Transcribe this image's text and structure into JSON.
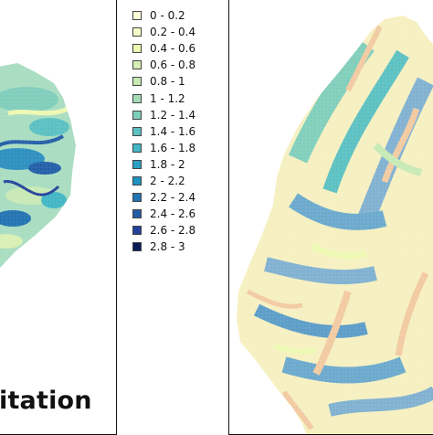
{
  "left_panel": {
    "title": "itation",
    "map_name": "left-map"
  },
  "right_panel": {
    "map_name": "right-map"
  },
  "legend": {
    "items": [
      {
        "label": "0 - 0.2",
        "color": "#ffffd9"
      },
      {
        "label": "0.2 - 0.4",
        "color": "#f6fbc5"
      },
      {
        "label": "0.4 - 0.6",
        "color": "#edf8b1"
      },
      {
        "label": "0.6 - 0.8",
        "color": "#d8efb4"
      },
      {
        "label": "0.8 - 1",
        "color": "#c7e9b4"
      },
      {
        "label": "1 - 1.2",
        "color": "#a3dbb7"
      },
      {
        "label": "1.2 - 1.4",
        "color": "#7fcdbb"
      },
      {
        "label": "1.4 - 1.6",
        "color": "#5ac0c1"
      },
      {
        "label": "1.6 - 1.8",
        "color": "#41b6c4"
      },
      {
        "label": "1.8 - 2",
        "color": "#2ca0c0"
      },
      {
        "label": "2 - 2.2",
        "color": "#1d91c0"
      },
      {
        "label": "2.2 - 2.4",
        "color": "#2273b2"
      },
      {
        "label": "2.4 - 2.6",
        "color": "#225ea8"
      },
      {
        "label": "2.6 - 2.8",
        "color": "#24429b"
      },
      {
        "label": "2.8 - 3",
        "color": "#081d58"
      }
    ]
  },
  "colors": {
    "border": "#111111",
    "background": "#ffffff",
    "right_warm": "#f2c9a0",
    "right_cream": "#f5f0c0",
    "left_base": "#9fd6c0"
  }
}
